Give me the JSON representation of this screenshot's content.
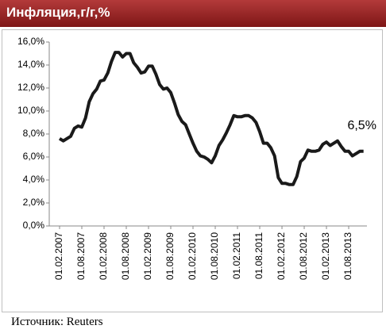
{
  "chart_data": {
    "type": "line",
    "title": "Инфляция,г/г,%",
    "source": "Источник: Reuters",
    "categories": [
      "01.02.2007",
      null,
      null,
      null,
      null,
      null,
      "01.08.2007",
      null,
      null,
      null,
      null,
      null,
      "01.02.2008",
      null,
      null,
      null,
      null,
      null,
      "01.08.2008",
      null,
      null,
      null,
      null,
      null,
      "01.02.2009",
      null,
      null,
      null,
      null,
      null,
      "01.08.2009",
      null,
      null,
      null,
      null,
      null,
      "01.02.2010",
      null,
      null,
      null,
      null,
      null,
      "01.08.2010",
      null,
      null,
      null,
      null,
      null,
      "01.02.2011",
      null,
      null,
      null,
      null,
      null,
      "01.08.2011",
      null,
      null,
      null,
      null,
      null,
      "01.02.2012",
      null,
      null,
      null,
      null,
      null,
      "01.08.2012",
      null,
      null,
      null,
      null,
      null,
      "01.02.2013",
      null,
      null,
      null,
      null,
      null,
      "01.08.2013",
      null,
      null,
      null,
      null
    ],
    "values": [
      7.6,
      7.4,
      7.6,
      7.8,
      8.5,
      8.7,
      8.6,
      9.4,
      10.8,
      11.5,
      11.9,
      12.6,
      12.7,
      13.3,
      14.3,
      15.1,
      15.1,
      14.7,
      15.0,
      15.0,
      14.2,
      13.8,
      13.3,
      13.4,
      13.9,
      13.9,
      13.2,
      12.3,
      11.9,
      12.0,
      11.6,
      10.7,
      9.7,
      9.1,
      8.8,
      8.0,
      7.2,
      6.5,
      6.1,
      6.0,
      5.8,
      5.5,
      6.1,
      7.0,
      7.5,
      8.1,
      8.8,
      9.6,
      9.5,
      9.5,
      9.6,
      9.6,
      9.4,
      9.0,
      8.2,
      7.2,
      7.2,
      6.8,
      6.1,
      4.2,
      3.7,
      3.7,
      3.6,
      3.6,
      4.3,
      5.6,
      5.9,
      6.6,
      6.5,
      6.5,
      6.6,
      7.1,
      7.3,
      7.0,
      7.2,
      7.4,
      6.9,
      6.5,
      6.5,
      6.1,
      6.3,
      6.5,
      6.5
    ],
    "value_labels": [
      null,
      null,
      null,
      null,
      null,
      null,
      null,
      null,
      null,
      null,
      null,
      null,
      null,
      null,
      null,
      null,
      null,
      null,
      null,
      null,
      null,
      null,
      null,
      null,
      null,
      null,
      null,
      null,
      null,
      null,
      null,
      null,
      null,
      null,
      null,
      null,
      null,
      null,
      null,
      null,
      null,
      null,
      null,
      null,
      null,
      null,
      null,
      null,
      null,
      null,
      null,
      null,
      null,
      null,
      null,
      null,
      null,
      null,
      null,
      null,
      null,
      null,
      null,
      null,
      null,
      null,
      null,
      null,
      null,
      null,
      null,
      null,
      null,
      null,
      null,
      null,
      null,
      null,
      null,
      null,
      null,
      null,
      "6,5%"
    ],
    "color": "#1a1a1a",
    "ylim": [
      0,
      16
    ],
    "yticks": [
      {
        "value": 0,
        "label": "0,0%"
      },
      {
        "value": 2,
        "label": "2,0%"
      },
      {
        "value": 4,
        "label": "4,0%"
      },
      {
        "value": 6,
        "label": "6,0%"
      },
      {
        "value": 8,
        "label": "8,0%"
      },
      {
        "value": 10,
        "label": "10,0%"
      },
      {
        "value": 12,
        "label": "12,0%"
      },
      {
        "value": 14,
        "label": "14,0%"
      },
      {
        "value": 16,
        "label": "16,0%"
      }
    ],
    "grid": false
  }
}
